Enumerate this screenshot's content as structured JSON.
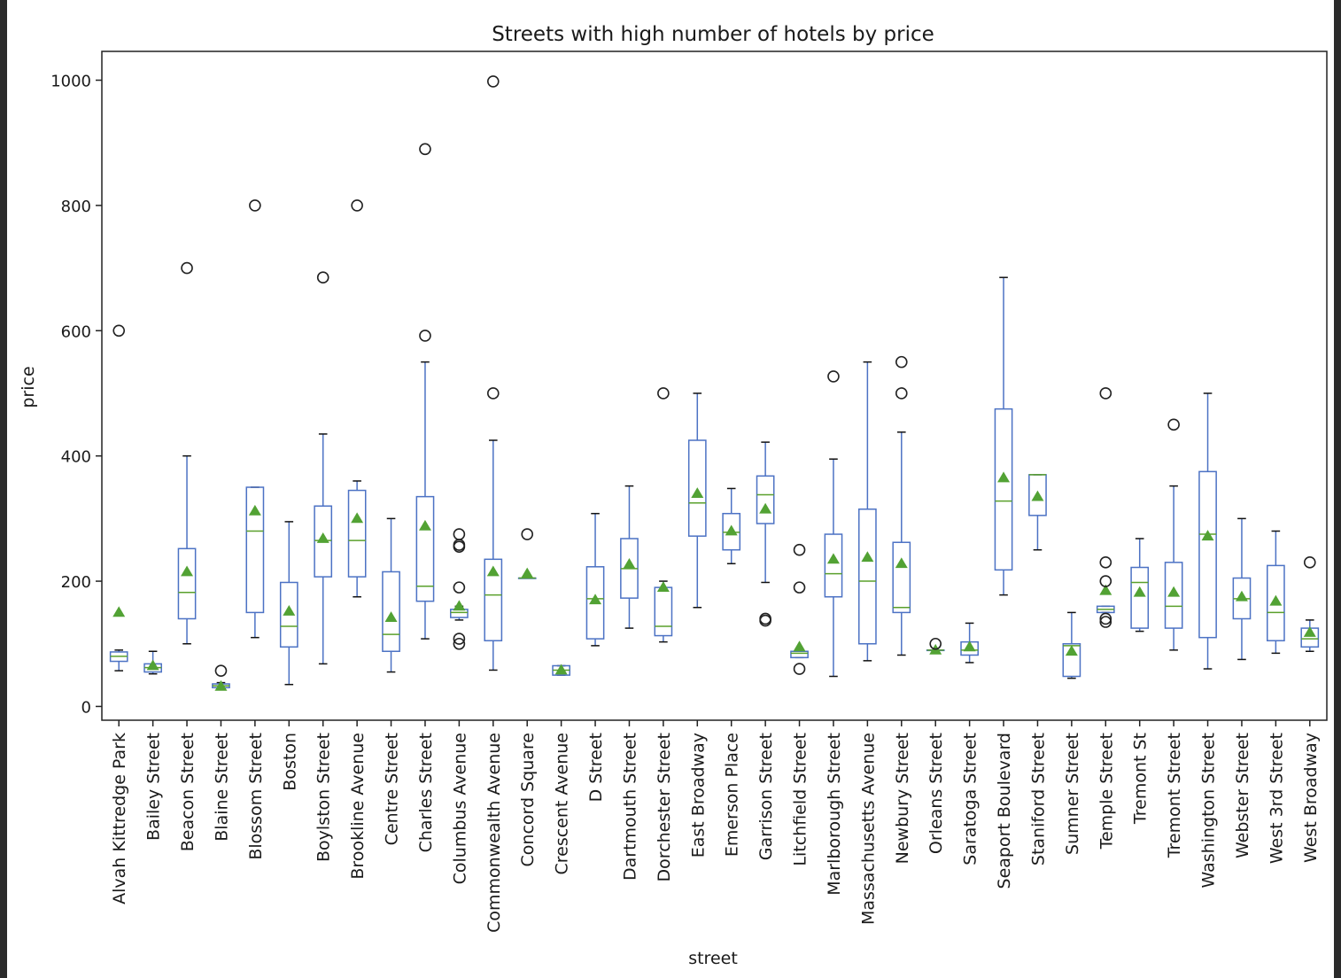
{
  "chart_data": {
    "type": "box",
    "title": "Streets with high number of hotels by price",
    "xlabel": "street",
    "ylabel": "price",
    "ylim": [
      -22,
      1046
    ],
    "yticks": [
      0,
      200,
      400,
      600,
      800,
      1000
    ],
    "colors": {
      "box": "#4c72c4",
      "median": "#5aa02c",
      "mean": "#52a234",
      "outlier": "#222222"
    },
    "categories": [
      "Alvah Kittredge Park",
      "Bailey Street",
      "Beacon Street",
      "Blaine Street",
      "Blossom Street",
      "Boston",
      "Boylston Street",
      "Brookline Avenue",
      "Centre Street",
      "Charles Street",
      "Columbus Avenue",
      "Commonwealth Avenue",
      "Concord Square",
      "Crescent Avenue",
      "D Street",
      "Dartmouth Street",
      "Dorchester Street",
      "East Broadway",
      "Emerson Place",
      "Garrison Street",
      "Litchfield Street",
      "Marlborough Street",
      "Massachusetts Avenue",
      "Newbury Street",
      "Orleans Street",
      "Saratoga Street",
      "Seaport Boulevard",
      "Staniford Street",
      "Sumner Street",
      "Temple Street",
      "Tremont St",
      "Tremont Street",
      "Washington Street",
      "Webster Street",
      "West 3rd Street",
      "West Broadway"
    ],
    "boxes": [
      {
        "whislo": 57,
        "q1": 72,
        "med": 80,
        "q3": 87,
        "whishi": 90,
        "mean": 150,
        "fliers": [
          600
        ]
      },
      {
        "whislo": 52,
        "q1": 55,
        "med": 62,
        "q3": 68,
        "whishi": 88,
        "mean": 65,
        "fliers": []
      },
      {
        "whislo": 100,
        "q1": 140,
        "med": 182,
        "q3": 252,
        "whishi": 400,
        "mean": 215,
        "fliers": [
          700
        ]
      },
      {
        "whislo": 28,
        "q1": 30,
        "med": 33,
        "q3": 36,
        "whishi": 38,
        "mean": 32,
        "fliers": [
          57
        ]
      },
      {
        "whislo": 110,
        "q1": 150,
        "med": 280,
        "q3": 350,
        "whishi": 350,
        "mean": 312,
        "fliers": [
          800
        ]
      },
      {
        "whislo": 35,
        "q1": 95,
        "med": 128,
        "q3": 198,
        "whishi": 295,
        "mean": 152,
        "fliers": []
      },
      {
        "whislo": 68,
        "q1": 207,
        "med": 265,
        "q3": 320,
        "whishi": 435,
        "mean": 268,
        "fliers": [
          685
        ]
      },
      {
        "whislo": 175,
        "q1": 207,
        "med": 265,
        "q3": 345,
        "whishi": 360,
        "mean": 300,
        "fliers": [
          800
        ]
      },
      {
        "whislo": 55,
        "q1": 88,
        "med": 115,
        "q3": 215,
        "whishi": 300,
        "mean": 142,
        "fliers": []
      },
      {
        "whislo": 108,
        "q1": 168,
        "med": 192,
        "q3": 335,
        "whishi": 550,
        "mean": 288,
        "fliers": [
          592,
          890
        ]
      },
      {
        "whislo": 138,
        "q1": 142,
        "med": 150,
        "q3": 155,
        "whishi": 160,
        "mean": 160,
        "fliers": [
          100,
          108,
          190,
          255,
          258,
          275
        ]
      },
      {
        "whislo": 58,
        "q1": 105,
        "med": 178,
        "q3": 235,
        "whishi": 425,
        "mean": 215,
        "fliers": [
          500,
          998
        ]
      },
      {
        "whislo": 205,
        "q1": 205,
        "med": 205,
        "q3": 205,
        "whishi": 205,
        "mean": 212,
        "fliers": [
          275
        ]
      },
      {
        "whislo": 50,
        "q1": 50,
        "med": 58,
        "q3": 65,
        "whishi": 65,
        "mean": 58,
        "fliers": []
      },
      {
        "whislo": 97,
        "q1": 108,
        "med": 172,
        "q3": 223,
        "whishi": 308,
        "mean": 170,
        "fliers": []
      },
      {
        "whislo": 125,
        "q1": 173,
        "med": 220,
        "q3": 268,
        "whishi": 352,
        "mean": 227,
        "fliers": []
      },
      {
        "whislo": 103,
        "q1": 113,
        "med": 128,
        "q3": 190,
        "whishi": 200,
        "mean": 190,
        "fliers": [
          500
        ]
      },
      {
        "whislo": 158,
        "q1": 272,
        "med": 325,
        "q3": 425,
        "whishi": 500,
        "mean": 340,
        "fliers": []
      },
      {
        "whislo": 228,
        "q1": 250,
        "med": 278,
        "q3": 308,
        "whishi": 348,
        "mean": 280,
        "fliers": []
      },
      {
        "whislo": 198,
        "q1": 292,
        "med": 338,
        "q3": 368,
        "whishi": 422,
        "mean": 315,
        "fliers": [
          137,
          140
        ]
      },
      {
        "whislo": 78,
        "q1": 78,
        "med": 85,
        "q3": 88,
        "whishi": 90,
        "mean": 95,
        "fliers": [
          60,
          190,
          250
        ]
      },
      {
        "whislo": 48,
        "q1": 175,
        "med": 212,
        "q3": 275,
        "whishi": 395,
        "mean": 235,
        "fliers": [
          527
        ]
      },
      {
        "whislo": 73,
        "q1": 100,
        "med": 200,
        "q3": 315,
        "whishi": 550,
        "mean": 238,
        "fliers": []
      },
      {
        "whislo": 82,
        "q1": 150,
        "med": 158,
        "q3": 262,
        "whishi": 438,
        "mean": 228,
        "fliers": [
          500,
          550
        ]
      },
      {
        "whislo": 90,
        "q1": 90,
        "med": 90,
        "q3": 90,
        "whishi": 90,
        "mean": 90,
        "fliers": [
          100
        ]
      },
      {
        "whislo": 70,
        "q1": 82,
        "med": 90,
        "q3": 103,
        "whishi": 133,
        "mean": 95,
        "fliers": []
      },
      {
        "whislo": 178,
        "q1": 218,
        "med": 328,
        "q3": 475,
        "whishi": 685,
        "mean": 365,
        "fliers": []
      },
      {
        "whislo": 250,
        "q1": 305,
        "med": 370,
        "q3": 370,
        "whishi": 370,
        "mean": 335,
        "fliers": []
      },
      {
        "whislo": 45,
        "q1": 48,
        "med": 97,
        "q3": 100,
        "whishi": 150,
        "mean": 88,
        "fliers": []
      },
      {
        "whislo": 150,
        "q1": 150,
        "med": 155,
        "q3": 160,
        "whishi": 160,
        "mean": 185,
        "fliers": [
          135,
          140,
          200,
          230,
          500
        ]
      },
      {
        "whislo": 120,
        "q1": 125,
        "med": 198,
        "q3": 222,
        "whishi": 268,
        "mean": 182,
        "fliers": []
      },
      {
        "whislo": 90,
        "q1": 125,
        "med": 160,
        "q3": 230,
        "whishi": 352,
        "mean": 182,
        "fliers": [
          450
        ]
      },
      {
        "whislo": 60,
        "q1": 110,
        "med": 275,
        "q3": 375,
        "whishi": 500,
        "mean": 272,
        "fliers": []
      },
      {
        "whislo": 75,
        "q1": 140,
        "med": 172,
        "q3": 205,
        "whishi": 300,
        "mean": 175,
        "fliers": []
      },
      {
        "whislo": 85,
        "q1": 105,
        "med": 150,
        "q3": 225,
        "whishi": 280,
        "mean": 168,
        "fliers": []
      },
      {
        "whislo": 88,
        "q1": 95,
        "med": 108,
        "q3": 125,
        "whishi": 138,
        "mean": 118,
        "fliers": [
          230
        ]
      }
    ]
  }
}
